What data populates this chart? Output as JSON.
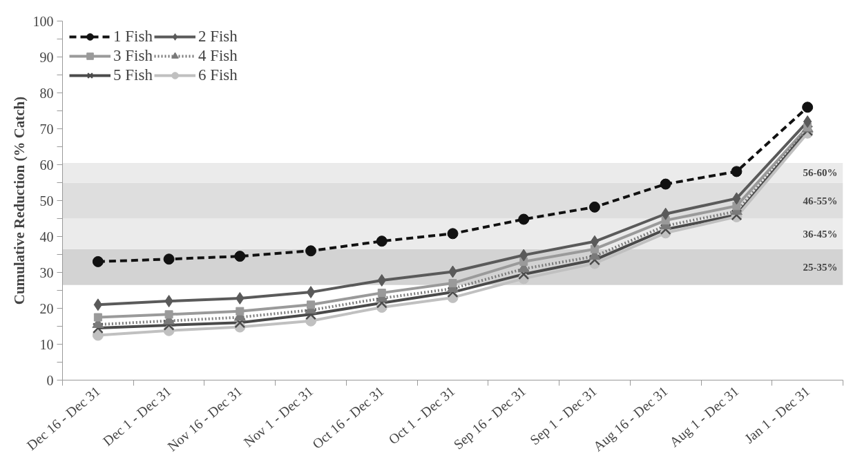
{
  "chart_data": {
    "type": "line",
    "ylabel": "Cumulative Reduction (% Catch)",
    "categories": [
      "Dec 16 - Dec 31",
      "Dec 1 - Dec 31",
      "Nov 16 - Dec 31",
      "Nov 1 - Dec 31",
      "Oct 16 - Dec 31",
      "Oct 1 - Dec 31",
      "Sep 16 - Dec 31",
      "Sep 1 - Dec 31",
      "Aug 16 - Dec 31",
      "Aug 1 - Dec 31",
      "Jan 1 - Dec 31"
    ],
    "series": [
      {
        "name": "1 Fish",
        "color": "#111111",
        "marker": "circle",
        "line_style": "dashed",
        "values": [
          33,
          33.7,
          34.5,
          36,
          38.7,
          40.8,
          44.8,
          48.2,
          54.6,
          58.1,
          76
        ]
      },
      {
        "name": "2 Fish",
        "color": "#5a5a5a",
        "marker": "diamond",
        "line_style": "solid",
        "values": [
          21,
          22,
          22.8,
          24.5,
          27.8,
          30.2,
          34.8,
          38.6,
          46.3,
          50.6,
          72
        ]
      },
      {
        "name": "3 Fish",
        "color": "#9a9a9a",
        "marker": "square",
        "line_style": "solid",
        "values": [
          17.5,
          18.3,
          19.2,
          21,
          24.3,
          27,
          33,
          36.5,
          44.5,
          48.5,
          70.5
        ]
      },
      {
        "name": "4 Fish",
        "color": "#7a7a7a",
        "marker": "triangle",
        "line_style": "dotted",
        "values": [
          15.5,
          16.5,
          17.5,
          19.5,
          22.8,
          25.5,
          31,
          34.5,
          43,
          47,
          70
        ]
      },
      {
        "name": "5 Fish",
        "color": "#4a4a4a",
        "marker": "cross",
        "line_style": "solid",
        "values": [
          14.5,
          15.3,
          16,
          18.3,
          21.5,
          24.5,
          29.5,
          33.5,
          42,
          46,
          69.5
        ]
      },
      {
        "name": "6 Fish",
        "color": "#c0c0c0",
        "marker": "circle",
        "line_style": "solid",
        "values": [
          12.5,
          13.8,
          14.8,
          16.5,
          20.3,
          23,
          28.3,
          32.5,
          41,
          45.5,
          68.8
        ]
      }
    ],
    "bands": [
      {
        "axis": "y",
        "from": 26.5,
        "to": 36.5,
        "label": "25-35%",
        "color": "#d3d3d3"
      },
      {
        "axis": "y",
        "from": 36.5,
        "to": 45,
        "label": "36-45%",
        "color": "#ebebeb"
      },
      {
        "axis": "y",
        "from": 45,
        "to": 55,
        "label": "46-55%",
        "color": "#dedede"
      },
      {
        "axis": "y",
        "from": 55,
        "to": 60.5,
        "label": "56-60%",
        "color": "#ebebeb"
      }
    ],
    "ylim": [
      0,
      100
    ],
    "yticks": [
      0,
      10,
      20,
      30,
      40,
      50,
      60,
      70,
      80,
      90,
      100
    ],
    "grid": false,
    "legend": "top left"
  }
}
